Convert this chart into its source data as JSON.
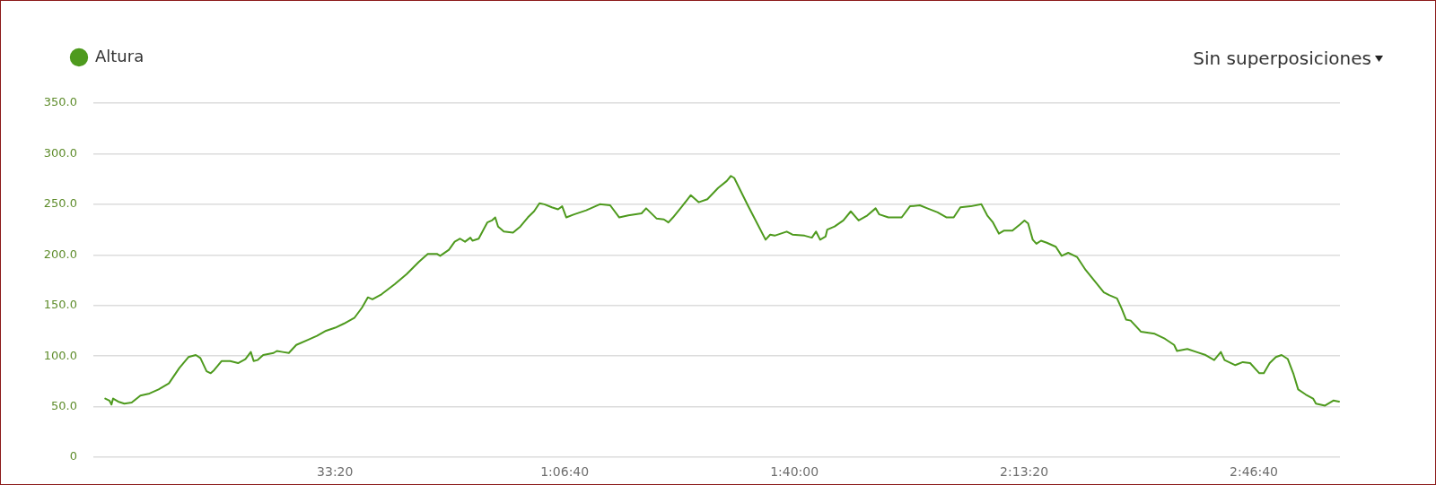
{
  "chart_data": {
    "type": "line",
    "x": [
      0,
      36,
      54,
      68,
      112,
      166,
      230,
      306,
      385,
      464,
      554,
      644,
      724,
      788,
      828,
      882,
      918,
      947,
      1012,
      1087,
      1156,
      1220,
      1267,
      1292,
      1325,
      1375,
      1465,
      1494,
      1544,
      1598,
      1663,
      1764,
      1843,
      1922,
      2002,
      2077,
      2171,
      2236,
      2286,
      2326,
      2405,
      2520,
      2624,
      2729,
      2808,
      2887,
      2916,
      2992,
      3042,
      3089,
      3132,
      3179,
      3197,
      3251,
      3326,
      3366,
      3395,
      3420,
      3470,
      3550,
      3614,
      3679,
      3733,
      3780,
      3823,
      3888,
      3942,
      3978,
      4014,
      4082,
      4187,
      4306,
      4396,
      4475,
      4554,
      4669,
      4709,
      4799,
      4864,
      4903,
      4943,
      5022,
      5098,
      5166,
      5242,
      5335,
      5411,
      5447,
      5476,
      5594,
      5749,
      5789,
      5828,
      5933,
      5983,
      6088,
      6152,
      6188,
      6224,
      6271,
      6286,
      6350,
      6426,
      6491,
      6559,
      6635,
      6707,
      6739,
      6818,
      6934,
      7006,
      7092,
      7157,
      7247,
      7326,
      7387,
      7445,
      7535,
      7628,
      7679,
      7729,
      7780,
      7826,
      7898,
      7963,
      8003,
      8035,
      8075,
      8107,
      8147,
      8197,
      8276,
      8327,
      8384,
      8460,
      8536,
      8615,
      8694,
      8744,
      8809,
      8849,
      8888,
      8928,
      9018,
      9137,
      9227,
      9306,
      9331,
      9421,
      9500,
      9580,
      9655,
      9713,
      9745,
      9839,
      9904,
      9968,
      10048,
      10087,
      10138,
      10192,
      10242,
      10296,
      10346,
      10386,
      10451,
      10516,
      10541,
      10620,
      10692,
      10742
    ],
    "series": [
      {
        "name": "Altura",
        "color": "#4e9a1e",
        "values": [
          58,
          56,
          52,
          58,
          55,
          53,
          54,
          61,
          63,
          67,
          73,
          88,
          99,
          101,
          98,
          85,
          83,
          86,
          95,
          95,
          93,
          97,
          104,
          95,
          96,
          101,
          103,
          105,
          104,
          103,
          111,
          116,
          120,
          125,
          128,
          132,
          138,
          148,
          158,
          156,
          161,
          171,
          181,
          193,
          201,
          201,
          199,
          205,
          213,
          216,
          213,
          217,
          214,
          216,
          232,
          234,
          237,
          228,
          223,
          222,
          228,
          237,
          243,
          251,
          250,
          247,
          245,
          248,
          237,
          240,
          244,
          250,
          249,
          237,
          239,
          241,
          246,
          236,
          235,
          232,
          237,
          248,
          259,
          252,
          255,
          266,
          273,
          278,
          276,
          249,
          215,
          220,
          219,
          223,
          220,
          219,
          217,
          223,
          215,
          218,
          225,
          228,
          234,
          243,
          234,
          239,
          246,
          240,
          237,
          237,
          248,
          249,
          246,
          242,
          237,
          237,
          247,
          248,
          250,
          239,
          232,
          221,
          224,
          224,
          230,
          234,
          231,
          215,
          211,
          214,
          212,
          208,
          199,
          202,
          198,
          185,
          174,
          163,
          160,
          157,
          147,
          136,
          135,
          124,
          122,
          117,
          111,
          105,
          107,
          104,
          101,
          96,
          104,
          96,
          91,
          94,
          93,
          83,
          83,
          93,
          99,
          101,
          97,
          82,
          67,
          62,
          58,
          53,
          51,
          56,
          55
        ]
      }
    ],
    "xlim": [
      -104,
      10750
    ],
    "xticks": [
      {
        "value": 2000,
        "label": "33:20"
      },
      {
        "value": 4000,
        "label": "1:06:40"
      },
      {
        "value": 6000,
        "label": "1:40:00"
      },
      {
        "value": 8000,
        "label": "2:13:20"
      },
      {
        "value": 10000,
        "label": "2:46:40"
      }
    ],
    "ylim": [
      0,
      350
    ],
    "yticks": [
      0,
      {
        "value": 50,
        "label": "50.0"
      },
      {
        "value": 100,
        "label": "100.0"
      },
      {
        "value": 150,
        "label": "150.0"
      },
      {
        "value": 200,
        "label": "200.0"
      },
      {
        "value": 250,
        "label": "250.0"
      },
      {
        "value": 300,
        "label": "300.0"
      },
      {
        "value": 350,
        "label": "350.0"
      }
    ],
    "grid": "y",
    "legend": "top left",
    "marker": "none",
    "line_style": "solid",
    "annotations": [
      "Sin superposiciones"
    ]
  }
}
